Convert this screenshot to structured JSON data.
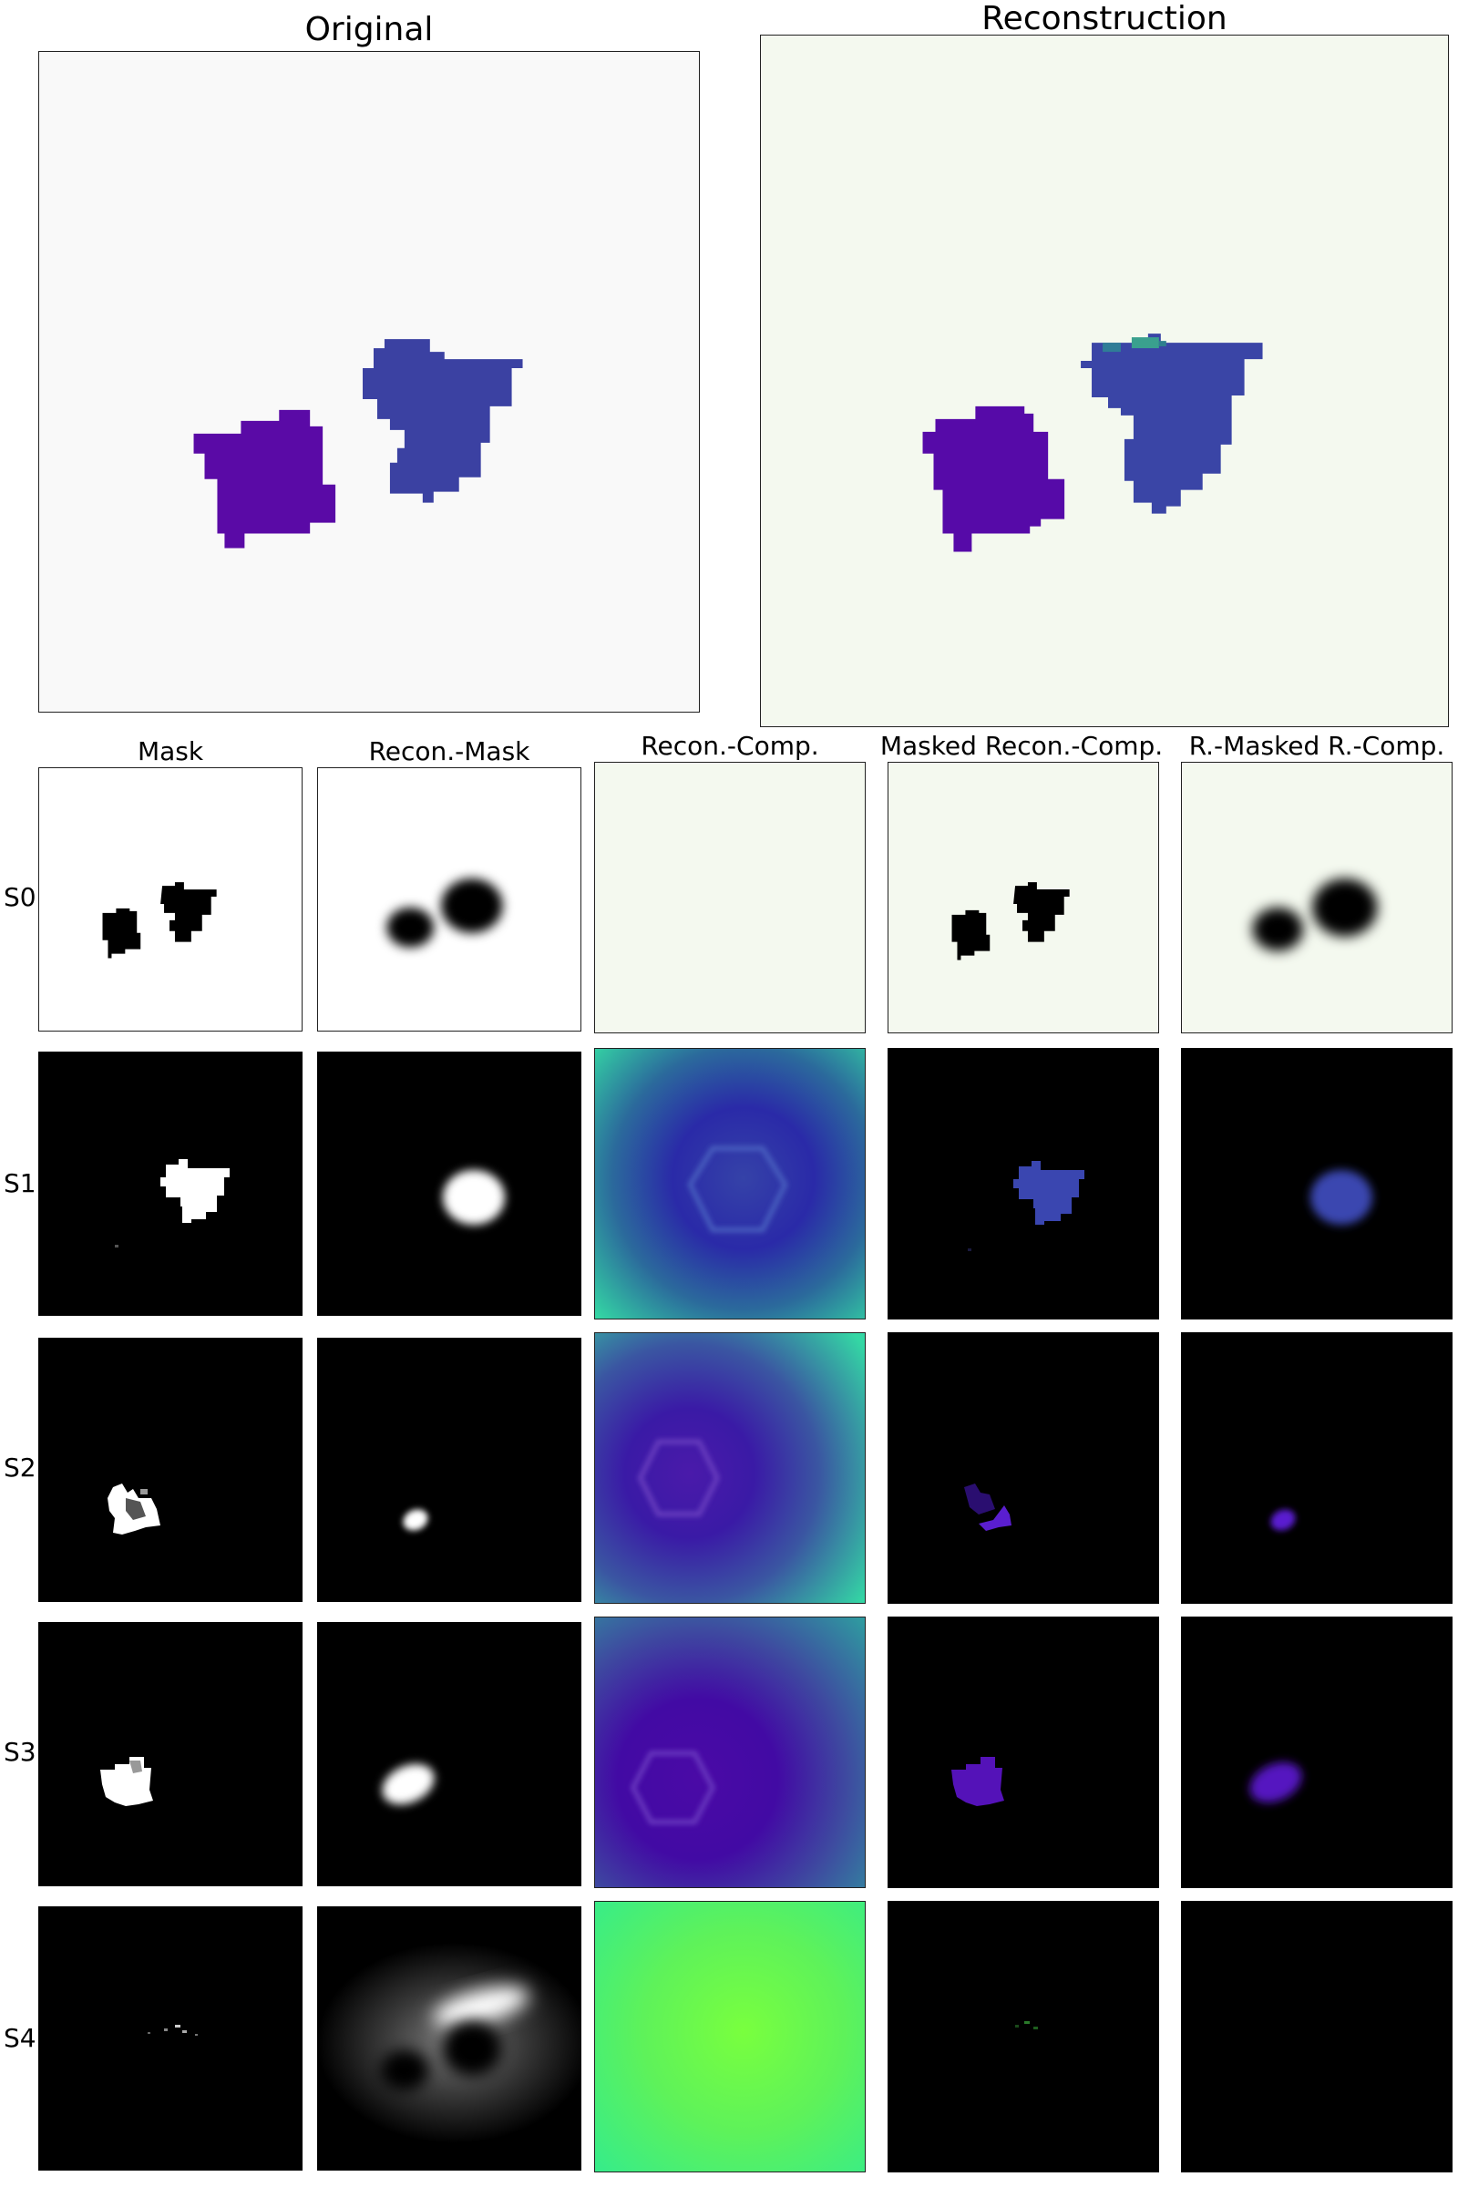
{
  "titles": {
    "original": "Original",
    "reconstruction": "Reconstruction"
  },
  "columns": [
    "Mask",
    "Recon.-Mask",
    "Recon.-Comp.",
    "Masked Recon.-Comp.",
    "R.-Masked R.-Comp."
  ],
  "rows": [
    "S0",
    "S1",
    "S2",
    "S3",
    "S4"
  ],
  "colors": {
    "background_original": "#f9f9f9",
    "background_reconstruction": "#f4f9ef",
    "object_left": "#5a0aa6",
    "object_right": "#3b41a2",
    "black": "#000000",
    "white": "#ffffff"
  }
}
